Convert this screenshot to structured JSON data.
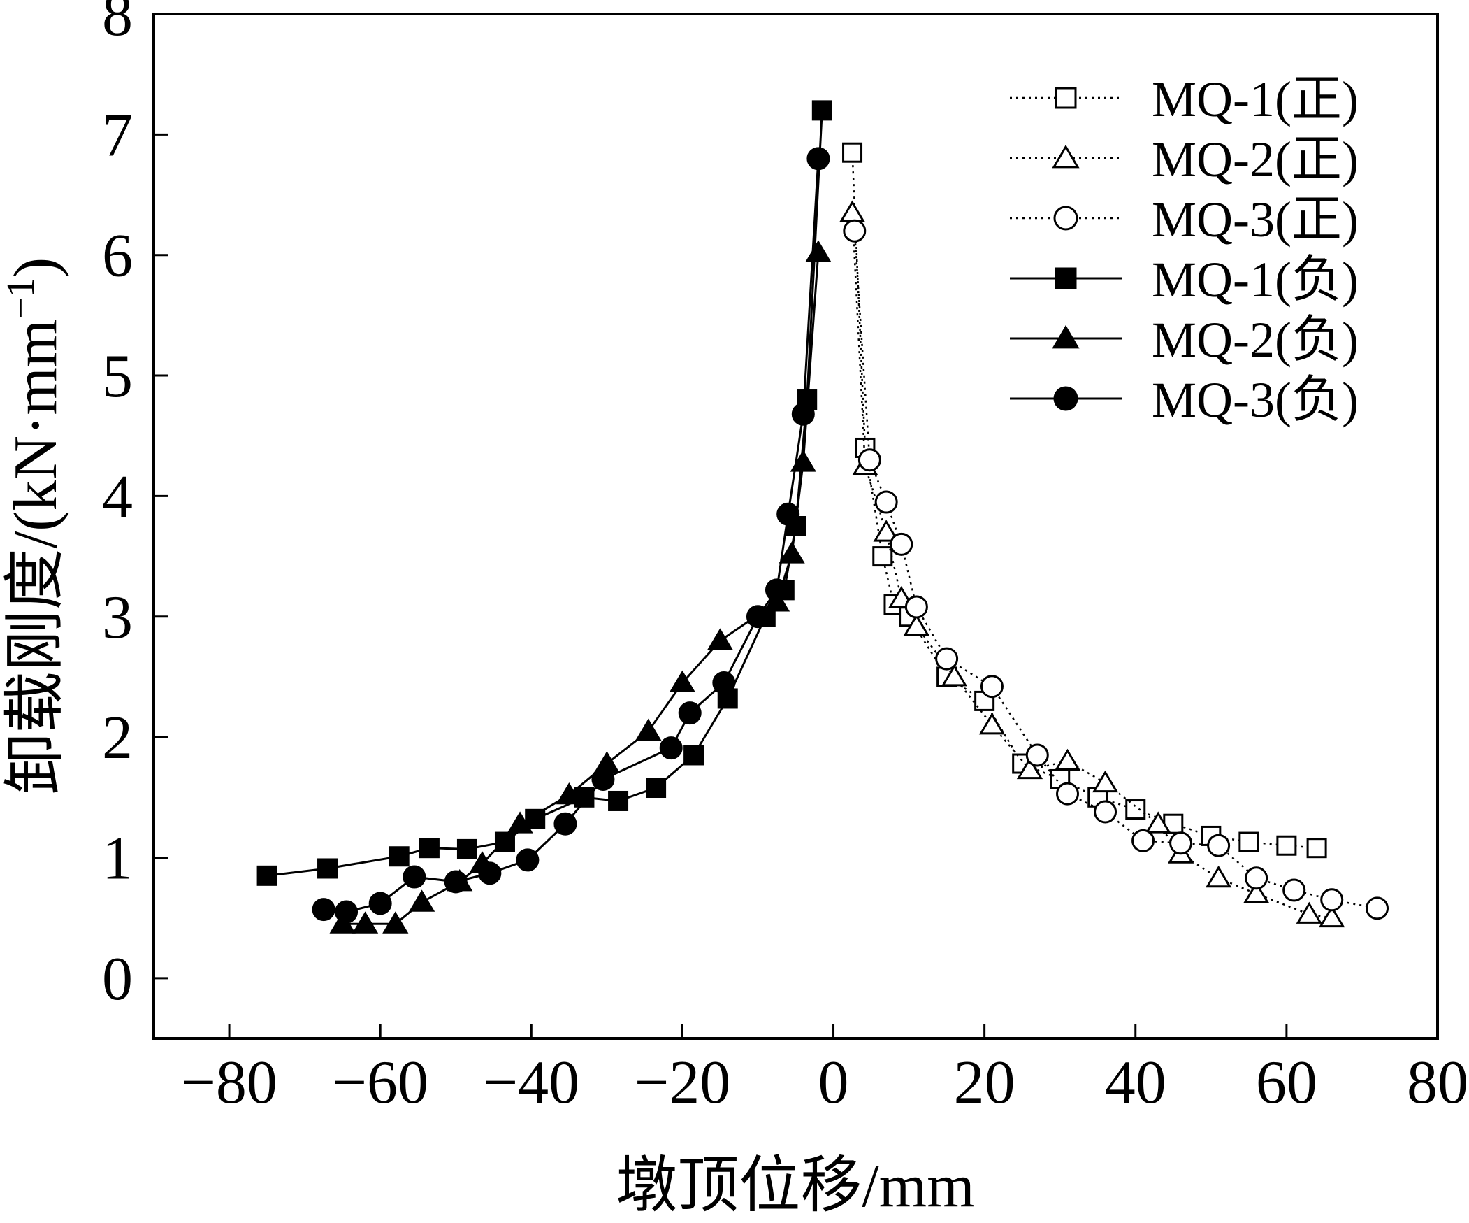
{
  "chart_data": {
    "type": "scatter",
    "xlabel": "墩顶位移/mm",
    "ylabel_main": "卸载刚度/(kN·mm",
    "ylabel_sup": "−1",
    "ylabel_close": ")",
    "xlim": [
      -90,
      80
    ],
    "ylim": [
      -0.5,
      8
    ],
    "xticks": [
      -80,
      -60,
      -40,
      -20,
      0,
      20,
      40,
      60,
      80
    ],
    "yticks": [
      0,
      1,
      2,
      3,
      4,
      5,
      6,
      7,
      8
    ],
    "xtick_labels": [
      "−80",
      "−60",
      "−40",
      "−20",
      "0",
      "20",
      "40",
      "60",
      "80"
    ],
    "ytick_labels": [
      "0",
      "1",
      "2",
      "3",
      "4",
      "5",
      "6",
      "7",
      "8"
    ],
    "grid": false,
    "legend_position": "top-right",
    "series": [
      {
        "name": "MQ-1(正)",
        "marker": "square-open",
        "line": "dotted",
        "points": [
          [
            2.5,
            6.85
          ],
          [
            4.2,
            4.4
          ],
          [
            6.5,
            3.5
          ],
          [
            8.0,
            3.1
          ],
          [
            10.0,
            3.0
          ],
          [
            15.0,
            2.5
          ],
          [
            20.0,
            2.3
          ],
          [
            25.0,
            1.78
          ],
          [
            30.0,
            1.65
          ],
          [
            35.0,
            1.5
          ],
          [
            40.0,
            1.4
          ],
          [
            45.0,
            1.28
          ],
          [
            50.0,
            1.18
          ],
          [
            55.0,
            1.13
          ],
          [
            60.0,
            1.1
          ],
          [
            64.0,
            1.08
          ]
        ]
      },
      {
        "name": "MQ-2(正)",
        "marker": "triangle-open",
        "line": "dotted",
        "points": [
          [
            2.5,
            6.35
          ],
          [
            4.2,
            4.25
          ],
          [
            7.0,
            3.7
          ],
          [
            9.0,
            3.15
          ],
          [
            11.0,
            2.92
          ],
          [
            16.0,
            2.5
          ],
          [
            21.0,
            2.1
          ],
          [
            26.0,
            1.73
          ],
          [
            31.0,
            1.8
          ],
          [
            36.0,
            1.62
          ],
          [
            43.0,
            1.28
          ],
          [
            46.0,
            1.03
          ],
          [
            51.0,
            0.83
          ],
          [
            56.0,
            0.7
          ],
          [
            63.0,
            0.53
          ],
          [
            66.0,
            0.5
          ]
        ]
      },
      {
        "name": "MQ-3(正)",
        "marker": "circle-open",
        "line": "dotted",
        "points": [
          [
            2.8,
            6.2
          ],
          [
            4.8,
            4.3
          ],
          [
            7.0,
            3.95
          ],
          [
            9.0,
            3.6
          ],
          [
            11.0,
            3.08
          ],
          [
            15.0,
            2.65
          ],
          [
            21.0,
            2.42
          ],
          [
            27.0,
            1.85
          ],
          [
            31.0,
            1.53
          ],
          [
            36.0,
            1.38
          ],
          [
            41.0,
            1.14
          ],
          [
            46.0,
            1.12
          ],
          [
            51.0,
            1.1
          ],
          [
            56.0,
            0.83
          ],
          [
            61.0,
            0.73
          ],
          [
            66.0,
            0.65
          ],
          [
            72.0,
            0.58
          ]
        ]
      },
      {
        "name": "MQ-1(负)",
        "marker": "square-filled",
        "line": "solid",
        "points": [
          [
            -75.0,
            0.85
          ],
          [
            -67.0,
            0.91
          ],
          [
            -57.5,
            1.01
          ],
          [
            -53.5,
            1.08
          ],
          [
            -48.5,
            1.07
          ],
          [
            -43.5,
            1.13
          ],
          [
            -39.5,
            1.32
          ],
          [
            -33.0,
            1.5
          ],
          [
            -28.5,
            1.47
          ],
          [
            -23.5,
            1.58
          ],
          [
            -18.5,
            1.85
          ],
          [
            -14.0,
            2.32
          ],
          [
            -9.0,
            3.0
          ],
          [
            -6.5,
            3.22
          ],
          [
            -5.0,
            3.75
          ],
          [
            -3.5,
            4.8
          ],
          [
            -1.5,
            7.2
          ]
        ]
      },
      {
        "name": "MQ-2(负)",
        "marker": "triangle-filled",
        "line": "solid",
        "points": [
          [
            -65.0,
            0.45
          ],
          [
            -62.0,
            0.45
          ],
          [
            -58.0,
            0.45
          ],
          [
            -54.5,
            0.63
          ],
          [
            -49.5,
            0.8
          ],
          [
            -46.5,
            0.95
          ],
          [
            -41.5,
            1.28
          ],
          [
            -35.0,
            1.52
          ],
          [
            -30.0,
            1.78
          ],
          [
            -24.5,
            2.05
          ],
          [
            -20.0,
            2.45
          ],
          [
            -15.0,
            2.8
          ],
          [
            -7.5,
            3.12
          ],
          [
            -5.5,
            3.52
          ],
          [
            -4.0,
            4.28
          ],
          [
            -2.0,
            6.02
          ]
        ]
      },
      {
        "name": "MQ-3(负)",
        "marker": "circle-filled",
        "line": "solid",
        "points": [
          [
            -67.5,
            0.57
          ],
          [
            -64.5,
            0.55
          ],
          [
            -60.0,
            0.62
          ],
          [
            -55.5,
            0.84
          ],
          [
            -50.0,
            0.8
          ],
          [
            -45.5,
            0.87
          ],
          [
            -40.5,
            0.98
          ],
          [
            -35.5,
            1.28
          ],
          [
            -30.5,
            1.65
          ],
          [
            -21.5,
            1.91
          ],
          [
            -19.0,
            2.2
          ],
          [
            -14.5,
            2.45
          ],
          [
            -10.0,
            3.0
          ],
          [
            -7.5,
            3.22
          ],
          [
            -6.0,
            3.85
          ],
          [
            -4.0,
            4.68
          ],
          [
            -2.0,
            6.8
          ]
        ]
      }
    ]
  }
}
